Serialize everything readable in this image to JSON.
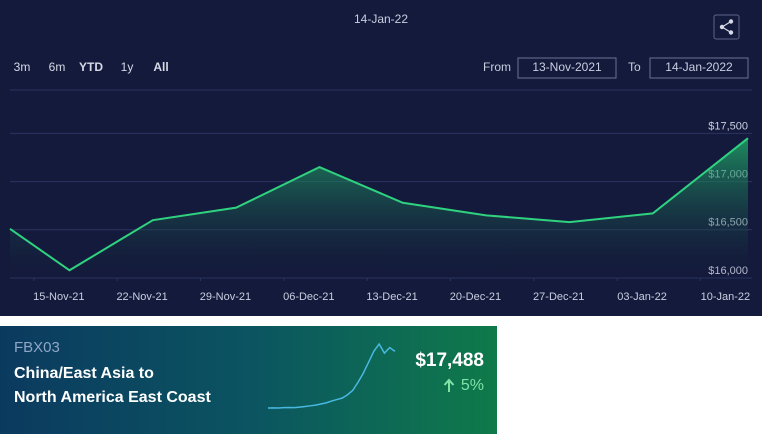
{
  "chart_data": {
    "type": "area",
    "title": "14-Jan-22",
    "x": [
      "2021-11-13",
      "2021-11-18",
      "2021-11-25",
      "2021-12-02",
      "2021-12-09",
      "2021-12-16",
      "2021-12-23",
      "2021-12-30",
      "2022-01-06",
      "2022-01-14"
    ],
    "series": [
      {
        "name": "FBX03",
        "color": "#2fd27f",
        "values": [
          16510,
          16080,
          16600,
          16730,
          17150,
          16780,
          16650,
          16580,
          16670,
          17450
        ]
      }
    ],
    "xlim": [
      "2021-11-13",
      "2022-01-14"
    ],
    "xticks": [
      {
        "value": "2021-11-15",
        "label": "15-Nov-21"
      },
      {
        "value": "2021-11-22",
        "label": "22-Nov-21"
      },
      {
        "value": "2021-11-29",
        "label": "29-Nov-21"
      },
      {
        "value": "2021-12-06",
        "label": "06-Dec-21"
      },
      {
        "value": "2021-12-13",
        "label": "13-Dec-21"
      },
      {
        "value": "2021-12-20",
        "label": "20-Dec-21"
      },
      {
        "value": "2021-12-27",
        "label": "27-Dec-21"
      },
      {
        "value": "2022-01-03",
        "label": "03-Jan-22"
      },
      {
        "value": "2022-01-10",
        "label": "10-Jan-22"
      }
    ],
    "ylim": [
      16000,
      17950
    ],
    "yticks": [
      {
        "value": 16000,
        "label": "$16,000"
      },
      {
        "value": 16500,
        "label": "$16,500"
      },
      {
        "value": 17000,
        "label": "$17,000"
      },
      {
        "value": 17500,
        "label": "$17,500"
      }
    ],
    "grid": true
  },
  "controls": {
    "ranges": [
      "3m",
      "6m",
      "YTD",
      "1y",
      "All"
    ],
    "active": [
      "YTD",
      "All"
    ],
    "from_label": "From",
    "from_value": "13-Nov-2021",
    "to_label": "To",
    "to_value": "14-Jan-2022"
  },
  "card": {
    "code": "FBX03",
    "route_line1": "China/East Asia to",
    "route_line2": "North America East Coast",
    "price": "$17,488",
    "change": "5%",
    "sparkline": [
      2000,
      2050,
      2000,
      2100,
      2150,
      2100,
      2250,
      2400,
      2600,
      2800,
      3100,
      3400,
      3900,
      4300,
      4700,
      5600,
      6800,
      9000,
      11500,
      14500,
      17500,
      19500,
      17000,
      18500,
      17488
    ]
  }
}
